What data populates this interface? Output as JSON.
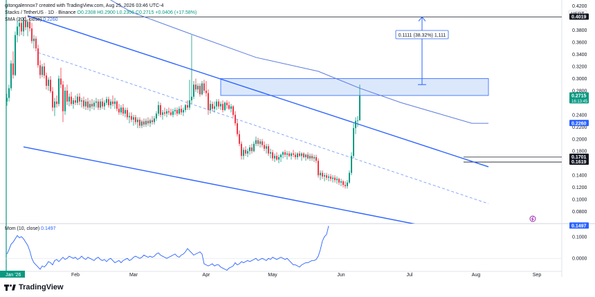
{
  "header": {
    "credit": "gitongalennox7 created with TradingView.com, Aug 25, 2026 03:46 UTC-4",
    "symbol": "Stacks / TetherUS · 1D · Binance",
    "ohlc": "O0.2308 H0.2900 L0.2306 C0.2715 +0.0406 (+17.58%)",
    "ma_label": "SMA (200, close)",
    "ma_value": "0.2260",
    "mom_label": "Mom (10, close)",
    "mom_value": "0.1497"
  },
  "currency": "USDT",
  "branding": {
    "name": "TradingView"
  },
  "colors": {
    "up": "#089981",
    "down": "#f23645",
    "channel": "#2962ff",
    "sma": "#5b7ce0",
    "momentum": "#2962ff",
    "zone_fill": "#cfe0fb",
    "price_label": "#089981",
    "dark_label": "#131722"
  },
  "chart_data": {
    "type": "candlestick",
    "x_axis": {
      "labels": [
        "Feb",
        "Mar",
        "Apr",
        "May",
        "Jun",
        "Jul",
        "Aug",
        "Sep"
      ],
      "start_label": "Jan '26"
    },
    "y_axis": {
      "range": [
        0.06,
        0.43
      ],
      "ticks": [
        "0.4200",
        "0.3800",
        "0.3600",
        "0.3400",
        "0.3200",
        "0.3000",
        "0.2800",
        "0.2400",
        "0.2200",
        "0.2000",
        "0.1800",
        "0.1400",
        "0.1200",
        "0.1000",
        "0.0800"
      ]
    },
    "price_labels": [
      {
        "value": "0.4019",
        "style": "dark"
      },
      {
        "value": "0.2715",
        "style": "green",
        "sub": "16:13:45"
      },
      {
        "value": "0.2260",
        "style": "blue"
      },
      {
        "value": "0.1701",
        "style": "dark"
      },
      {
        "value": "0.1619",
        "style": "dark"
      }
    ],
    "horizontal_lines": [
      0.4019,
      0.1701,
      0.1619
    ],
    "resistance_zone": {
      "from_day": 103,
      "to_day": 232,
      "low": 0.272,
      "high": 0.3
    },
    "measure_annotation": {
      "text": "0.1111 (38.32%) 1,111",
      "from": 0.29,
      "to": 0.4019,
      "day": 200
    },
    "channel": {
      "upper": [
        [
          10,
          0.404
        ],
        [
          232,
          0.154
        ]
      ],
      "lower": [
        [
          8,
          0.187
        ],
        [
          200,
          0.057
        ]
      ],
      "mid": [
        [
          15,
          0.343
        ],
        [
          232,
          0.093
        ]
      ]
    },
    "sma_200": [
      [
        30,
        0.47
      ],
      [
        60,
        0.41
      ],
      [
        90,
        0.372
      ],
      [
        120,
        0.335
      ],
      [
        150,
        0.312
      ],
      [
        170,
        0.284
      ],
      [
        190,
        0.26
      ],
      [
        210,
        0.24
      ],
      [
        224,
        0.226
      ],
      [
        232,
        0.226
      ]
    ],
    "candles": [
      [
        0.262,
        0.275,
        0.255,
        0.268
      ],
      [
        0.268,
        0.29,
        0.262,
        0.284
      ],
      [
        0.284,
        0.33,
        0.28,
        0.325
      ],
      [
        0.325,
        0.345,
        0.3,
        0.306
      ],
      [
        0.306,
        0.378,
        0.304,
        0.372
      ],
      [
        0.372,
        0.395,
        0.36,
        0.386
      ],
      [
        0.386,
        0.4,
        0.37,
        0.392
      ],
      [
        0.392,
        0.398,
        0.372,
        0.378
      ],
      [
        0.378,
        0.402,
        0.37,
        0.396
      ],
      [
        0.396,
        0.404,
        0.38,
        0.385
      ],
      [
        0.385,
        0.398,
        0.37,
        0.394
      ],
      [
        0.394,
        0.401,
        0.378,
        0.383
      ],
      [
        0.383,
        0.392,
        0.358,
        0.362
      ],
      [
        0.362,
        0.372,
        0.35,
        0.366
      ],
      [
        0.366,
        0.37,
        0.345,
        0.35
      ],
      [
        0.35,
        0.356,
        0.318,
        0.322
      ],
      [
        0.322,
        0.33,
        0.3,
        0.306
      ],
      [
        0.306,
        0.324,
        0.302,
        0.32
      ],
      [
        0.32,
        0.326,
        0.3,
        0.305
      ],
      [
        0.305,
        0.31,
        0.282,
        0.288
      ],
      [
        0.288,
        0.302,
        0.28,
        0.298
      ],
      [
        0.298,
        0.304,
        0.276,
        0.279
      ],
      [
        0.279,
        0.286,
        0.246,
        0.252
      ],
      [
        0.252,
        0.268,
        0.238,
        0.262
      ],
      [
        0.262,
        0.272,
        0.252,
        0.258
      ],
      [
        0.258,
        0.305,
        0.254,
        0.3
      ],
      [
        0.3,
        0.318,
        0.284,
        0.29
      ],
      [
        0.29,
        0.296,
        0.228,
        0.246
      ],
      [
        0.246,
        0.286,
        0.24,
        0.28
      ],
      [
        0.28,
        0.29,
        0.256,
        0.262
      ],
      [
        0.262,
        0.275,
        0.254,
        0.27
      ],
      [
        0.27,
        0.278,
        0.255,
        0.258
      ],
      [
        0.258,
        0.268,
        0.25,
        0.264
      ],
      [
        0.264,
        0.272,
        0.256,
        0.26
      ],
      [
        0.26,
        0.275,
        0.256,
        0.27
      ],
      [
        0.27,
        0.276,
        0.256,
        0.262
      ],
      [
        0.262,
        0.268,
        0.252,
        0.264
      ],
      [
        0.264,
        0.27,
        0.25,
        0.254
      ],
      [
        0.254,
        0.266,
        0.248,
        0.262
      ],
      [
        0.262,
        0.268,
        0.248,
        0.252
      ],
      [
        0.252,
        0.264,
        0.246,
        0.258
      ],
      [
        0.258,
        0.266,
        0.25,
        0.254
      ],
      [
        0.254,
        0.264,
        0.248,
        0.26
      ],
      [
        0.26,
        0.268,
        0.252,
        0.262
      ],
      [
        0.262,
        0.266,
        0.248,
        0.252
      ],
      [
        0.252,
        0.266,
        0.248,
        0.262
      ],
      [
        0.262,
        0.268,
        0.25,
        0.254
      ],
      [
        0.254,
        0.264,
        0.248,
        0.26
      ],
      [
        0.26,
        0.27,
        0.256,
        0.266
      ],
      [
        0.266,
        0.27,
        0.252,
        0.256
      ],
      [
        0.256,
        0.266,
        0.25,
        0.262
      ],
      [
        0.262,
        0.272,
        0.254,
        0.258
      ],
      [
        0.258,
        0.268,
        0.25,
        0.262
      ],
      [
        0.262,
        0.264,
        0.246,
        0.25
      ],
      [
        0.25,
        0.258,
        0.24,
        0.244
      ],
      [
        0.244,
        0.256,
        0.24,
        0.252
      ],
      [
        0.252,
        0.258,
        0.238,
        0.242
      ],
      [
        0.242,
        0.252,
        0.236,
        0.248
      ],
      [
        0.248,
        0.252,
        0.232,
        0.236
      ],
      [
        0.236,
        0.244,
        0.226,
        0.238
      ],
      [
        0.238,
        0.244,
        0.228,
        0.232
      ],
      [
        0.232,
        0.24,
        0.222,
        0.236
      ],
      [
        0.236,
        0.24,
        0.224,
        0.228
      ],
      [
        0.228,
        0.236,
        0.218,
        0.232
      ],
      [
        0.232,
        0.236,
        0.218,
        0.222
      ],
      [
        0.222,
        0.232,
        0.218,
        0.229
      ],
      [
        0.229,
        0.234,
        0.22,
        0.224
      ],
      [
        0.224,
        0.234,
        0.22,
        0.23
      ],
      [
        0.23,
        0.236,
        0.222,
        0.226
      ],
      [
        0.226,
        0.234,
        0.22,
        0.231
      ],
      [
        0.231,
        0.238,
        0.224,
        0.228
      ],
      [
        0.228,
        0.238,
        0.224,
        0.234
      ],
      [
        0.234,
        0.246,
        0.23,
        0.242
      ],
      [
        0.242,
        0.262,
        0.238,
        0.256
      ],
      [
        0.256,
        0.26,
        0.236,
        0.24
      ],
      [
        0.24,
        0.248,
        0.232,
        0.244
      ],
      [
        0.244,
        0.252,
        0.238,
        0.242
      ],
      [
        0.242,
        0.25,
        0.236,
        0.246
      ],
      [
        0.246,
        0.252,
        0.24,
        0.244
      ],
      [
        0.244,
        0.25,
        0.238,
        0.24
      ],
      [
        0.24,
        0.25,
        0.236,
        0.246
      ],
      [
        0.246,
        0.252,
        0.24,
        0.248
      ],
      [
        0.248,
        0.252,
        0.238,
        0.242
      ],
      [
        0.242,
        0.254,
        0.24,
        0.25
      ],
      [
        0.25,
        0.256,
        0.24,
        0.244
      ],
      [
        0.244,
        0.252,
        0.238,
        0.248
      ],
      [
        0.248,
        0.258,
        0.244,
        0.256
      ],
      [
        0.256,
        0.264,
        0.248,
        0.252
      ],
      [
        0.252,
        0.298,
        0.248,
        0.264
      ],
      [
        0.264,
        0.372,
        0.258,
        0.27
      ],
      [
        0.27,
        0.296,
        0.266,
        0.29
      ],
      [
        0.29,
        0.3,
        0.278,
        0.282
      ],
      [
        0.282,
        0.292,
        0.276,
        0.288
      ],
      [
        0.288,
        0.292,
        0.27,
        0.274
      ],
      [
        0.274,
        0.296,
        0.272,
        0.292
      ],
      [
        0.292,
        0.298,
        0.276,
        0.28
      ],
      [
        0.28,
        0.296,
        0.27,
        0.276
      ],
      [
        0.276,
        0.282,
        0.24,
        0.248
      ],
      [
        0.248,
        0.264,
        0.242,
        0.258
      ],
      [
        0.258,
        0.262,
        0.246,
        0.25
      ],
      [
        0.25,
        0.262,
        0.244,
        0.254
      ],
      [
        0.254,
        0.266,
        0.248,
        0.262
      ],
      [
        0.262,
        0.266,
        0.25,
        0.254
      ],
      [
        0.254,
        0.262,
        0.248,
        0.258
      ],
      [
        0.258,
        0.264,
        0.244,
        0.248
      ],
      [
        0.248,
        0.262,
        0.246,
        0.26
      ],
      [
        0.26,
        0.264,
        0.25,
        0.256
      ],
      [
        0.256,
        0.262,
        0.248,
        0.25
      ],
      [
        0.25,
        0.258,
        0.244,
        0.254
      ],
      [
        0.254,
        0.256,
        0.236,
        0.24
      ],
      [
        0.24,
        0.246,
        0.222,
        0.226
      ],
      [
        0.226,
        0.232,
        0.204,
        0.208
      ],
      [
        0.208,
        0.214,
        0.188,
        0.192
      ],
      [
        0.192,
        0.196,
        0.166,
        0.172
      ],
      [
        0.172,
        0.186,
        0.166,
        0.182
      ],
      [
        0.182,
        0.188,
        0.172,
        0.176
      ],
      [
        0.176,
        0.184,
        0.17,
        0.18
      ],
      [
        0.18,
        0.19,
        0.174,
        0.186
      ],
      [
        0.186,
        0.192,
        0.176,
        0.18
      ],
      [
        0.18,
        0.196,
        0.178,
        0.192
      ],
      [
        0.192,
        0.204,
        0.188,
        0.198
      ],
      [
        0.198,
        0.202,
        0.188,
        0.192
      ],
      [
        0.192,
        0.2,
        0.186,
        0.196
      ],
      [
        0.196,
        0.2,
        0.186,
        0.19
      ],
      [
        0.19,
        0.196,
        0.18,
        0.184
      ],
      [
        0.184,
        0.192,
        0.176,
        0.188
      ],
      [
        0.188,
        0.192,
        0.172,
        0.176
      ],
      [
        0.176,
        0.184,
        0.168,
        0.178
      ],
      [
        0.178,
        0.182,
        0.164,
        0.168
      ],
      [
        0.168,
        0.176,
        0.162,
        0.172
      ],
      [
        0.172,
        0.178,
        0.164,
        0.166
      ],
      [
        0.166,
        0.174,
        0.16,
        0.17
      ],
      [
        0.17,
        0.176,
        0.162,
        0.174
      ],
      [
        0.174,
        0.18,
        0.168,
        0.178
      ],
      [
        0.178,
        0.182,
        0.17,
        0.174
      ],
      [
        0.174,
        0.18,
        0.166,
        0.176
      ],
      [
        0.176,
        0.18,
        0.17,
        0.172
      ],
      [
        0.172,
        0.178,
        0.166,
        0.176
      ],
      [
        0.176,
        0.182,
        0.17,
        0.174
      ],
      [
        0.174,
        0.178,
        0.166,
        0.17
      ],
      [
        0.17,
        0.178,
        0.166,
        0.176
      ],
      [
        0.176,
        0.18,
        0.17,
        0.172
      ],
      [
        0.172,
        0.178,
        0.164,
        0.176
      ],
      [
        0.176,
        0.178,
        0.168,
        0.17
      ],
      [
        0.17,
        0.176,
        0.164,
        0.174
      ],
      [
        0.174,
        0.178,
        0.166,
        0.168
      ],
      [
        0.168,
        0.176,
        0.164,
        0.172
      ],
      [
        0.172,
        0.176,
        0.164,
        0.168
      ],
      [
        0.168,
        0.174,
        0.162,
        0.17
      ],
      [
        0.17,
        0.174,
        0.16,
        0.164
      ],
      [
        0.164,
        0.168,
        0.136,
        0.14
      ],
      [
        0.14,
        0.148,
        0.132,
        0.144
      ],
      [
        0.144,
        0.148,
        0.134,
        0.138
      ],
      [
        0.138,
        0.144,
        0.13,
        0.14
      ],
      [
        0.14,
        0.144,
        0.132,
        0.136
      ],
      [
        0.136,
        0.142,
        0.13,
        0.138
      ],
      [
        0.138,
        0.142,
        0.13,
        0.134
      ],
      [
        0.134,
        0.14,
        0.128,
        0.136
      ],
      [
        0.136,
        0.14,
        0.128,
        0.132
      ],
      [
        0.132,
        0.138,
        0.126,
        0.134
      ],
      [
        0.134,
        0.136,
        0.124,
        0.128
      ],
      [
        0.128,
        0.134,
        0.122,
        0.13
      ],
      [
        0.13,
        0.132,
        0.12,
        0.124
      ],
      [
        0.124,
        0.13,
        0.118,
        0.122
      ],
      [
        0.122,
        0.132,
        0.118,
        0.128
      ],
      [
        0.128,
        0.148,
        0.126,
        0.144
      ],
      [
        0.144,
        0.178,
        0.14,
        0.172
      ],
      [
        0.172,
        0.226,
        0.168,
        0.218
      ],
      [
        0.218,
        0.236,
        0.208,
        0.23
      ],
      [
        0.23,
        0.238,
        0.22,
        0.231
      ],
      [
        0.2308,
        0.29,
        0.2306,
        0.2715
      ]
    ],
    "momentum": {
      "name": "Mom (10, close)",
      "range": [
        -0.06,
        0.16
      ],
      "ticks": [
        "0.1000",
        "0.0000"
      ],
      "values": [
        0.02,
        0.04,
        0.065,
        0.075,
        0.09,
        0.105,
        0.095,
        0.1,
        0.09,
        0.075,
        0.06,
        0.035,
        0.0,
        -0.02,
        -0.03,
        -0.04,
        -0.05,
        -0.035,
        -0.04,
        -0.03,
        -0.015,
        -0.02,
        -0.03,
        -0.01,
        -0.005,
        -0.015,
        -0.005,
        0.005,
        -0.005,
        0.0,
        0.01,
        0.005,
        0.0,
        0.005,
        -0.005,
        0.0,
        0.01,
        0.0,
        -0.005,
        0.005,
        0.0,
        -0.005,
        -0.01,
        0.0,
        0.005,
        -0.005,
        -0.01,
        -0.005,
        -0.015,
        -0.005,
        0.0,
        -0.01,
        -0.02,
        -0.015,
        -0.01,
        -0.02,
        -0.01,
        -0.005,
        0.0,
        -0.01,
        -0.005,
        0.005,
        0.01,
        0.005,
        0.0,
        0.005,
        0.015,
        0.01,
        0.005,
        0.01,
        0.005,
        0.01,
        0.02,
        0.025,
        0.015,
        0.01,
        0.005,
        0.0,
        0.005,
        0.01,
        0.015,
        0.02,
        0.01,
        0.005,
        0.015,
        0.02,
        0.03,
        0.045,
        0.035,
        0.025,
        0.015,
        0.02,
        0.025,
        0.03,
        0.02,
        -0.025,
        -0.03,
        -0.035,
        -0.03,
        -0.025,
        -0.035,
        -0.03,
        -0.03,
        -0.04,
        -0.045,
        -0.05,
        -0.055,
        -0.045,
        -0.04,
        -0.035,
        -0.02,
        -0.03,
        -0.025,
        -0.015,
        -0.02,
        -0.015,
        -0.01,
        -0.015,
        -0.01,
        -0.005,
        0.0,
        -0.01,
        -0.005,
        0.0,
        -0.005,
        -0.01,
        0.0,
        -0.005,
        0.005,
        0.0,
        -0.005,
        0.0,
        0.005,
        0.0,
        -0.005,
        0.0,
        -0.01,
        -0.02,
        -0.03,
        -0.03,
        -0.035,
        -0.04,
        -0.03,
        -0.025,
        -0.02,
        -0.02,
        -0.015,
        -0.01,
        -0.01,
        -0.005,
        0.01,
        0.04,
        0.08,
        0.1,
        0.11,
        0.1497
      ]
    }
  }
}
